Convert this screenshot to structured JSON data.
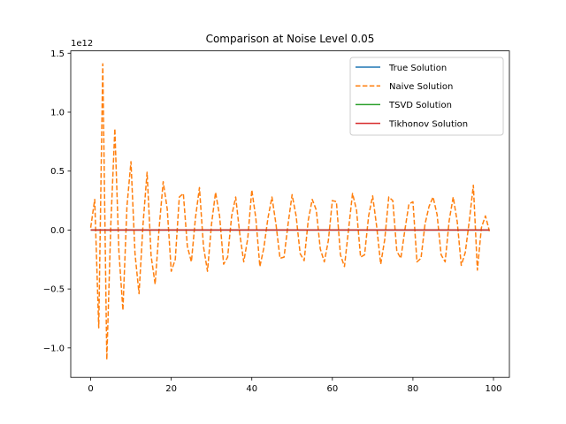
{
  "chart_data": {
    "type": "line",
    "title": "Comparison at Noise Level 0.05",
    "xlabel": "",
    "ylabel": "",
    "y_scale_label": "1e12",
    "xlim": [
      -4.95,
      103.95
    ],
    "ylim": [
      -1.25,
      1.52
    ],
    "x_ticks": [
      0,
      20,
      40,
      60,
      80,
      100
    ],
    "x_tick_labels": [
      "0",
      "20",
      "40",
      "60",
      "80",
      "100"
    ],
    "y_ticks": [
      -1.0,
      -0.5,
      0.0,
      0.5,
      1.0,
      1.5
    ],
    "y_tick_labels": [
      "−1.0",
      "−0.5",
      "0.0",
      "0.5",
      "1.0",
      "1.5"
    ],
    "grid": false,
    "legend_position": "top-right",
    "series": [
      {
        "name": "True Solution",
        "color": "#1f77b4",
        "style": "solid",
        "x": [
          0,
          99
        ],
        "values": [
          0,
          0
        ]
      },
      {
        "name": "Naive Solution",
        "color": "#ff7f0e",
        "style": "dashed",
        "x": [
          0,
          1,
          2,
          3,
          4,
          5,
          6,
          7,
          8,
          9,
          10,
          11,
          12,
          13,
          14,
          15,
          16,
          17,
          18,
          19,
          20,
          21,
          22,
          23,
          24,
          25,
          26,
          27,
          28,
          29,
          30,
          31,
          32,
          33,
          34,
          35,
          36,
          37,
          38,
          39,
          40,
          41,
          42,
          43,
          44,
          45,
          46,
          47,
          48,
          49,
          50,
          51,
          52,
          53,
          54,
          55,
          56,
          57,
          58,
          59,
          60,
          61,
          62,
          63,
          64,
          65,
          66,
          67,
          68,
          69,
          70,
          71,
          72,
          73,
          74,
          75,
          76,
          77,
          78,
          79,
          80,
          81,
          82,
          83,
          84,
          85,
          86,
          87,
          88,
          89,
          90,
          91,
          92,
          93,
          94,
          95,
          96,
          97,
          98,
          99
        ],
        "values": [
          0.02,
          0.26,
          -0.83,
          1.41,
          -1.1,
          0.05,
          0.86,
          -0.18,
          -0.68,
          0.2,
          0.58,
          -0.2,
          -0.54,
          0.05,
          0.49,
          -0.22,
          -0.46,
          0.02,
          0.41,
          0.18,
          -0.35,
          -0.25,
          0.28,
          0.31,
          -0.14,
          -0.27,
          0.1,
          0.36,
          -0.14,
          -0.35,
          0.05,
          0.32,
          0.12,
          -0.29,
          -0.23,
          0.12,
          0.28,
          -0.03,
          -0.27,
          -0.07,
          0.34,
          0.1,
          -0.31,
          -0.15,
          0.1,
          0.28,
          0.05,
          -0.24,
          -0.23,
          0.05,
          0.3,
          0.12,
          -0.2,
          -0.26,
          0.08,
          0.26,
          0.17,
          -0.16,
          -0.27,
          -0.09,
          0.25,
          0.24,
          -0.21,
          -0.31,
          0.0,
          0.31,
          0.17,
          -0.23,
          -0.21,
          0.12,
          0.29,
          0.03,
          -0.29,
          -0.08,
          0.28,
          0.25,
          -0.18,
          -0.24,
          0.0,
          0.22,
          0.24,
          -0.27,
          -0.24,
          0.05,
          0.2,
          0.28,
          0.13,
          -0.21,
          -0.27,
          0.08,
          0.28,
          0.07,
          -0.3,
          -0.19,
          0.08,
          0.38,
          -0.34,
          0.02,
          0.12,
          -0.01
        ]
      },
      {
        "name": "TSVD Solution",
        "color": "#2ca02c",
        "style": "solid",
        "x": [
          0,
          99
        ],
        "values": [
          0,
          0
        ]
      },
      {
        "name": "Tikhonov Solution",
        "color": "#d62728",
        "style": "solid",
        "x": [
          0,
          99
        ],
        "values": [
          0,
          0
        ]
      }
    ]
  }
}
